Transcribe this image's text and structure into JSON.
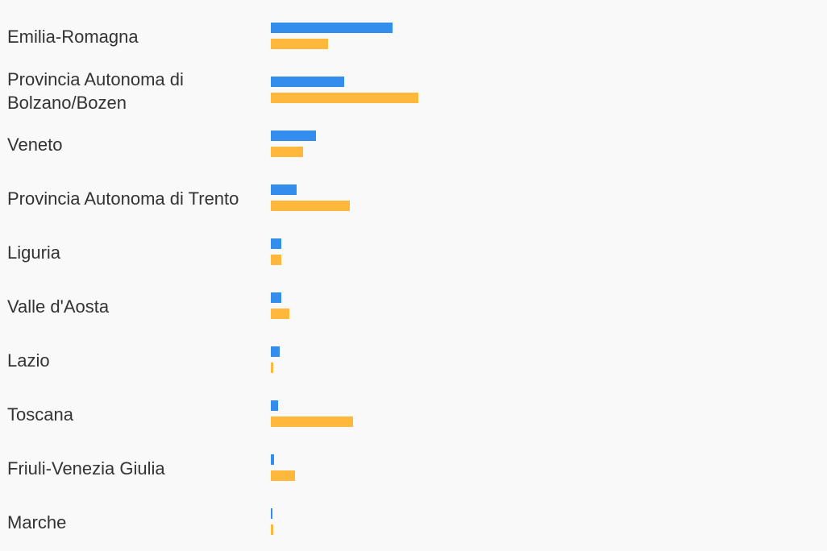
{
  "chart_data": {
    "type": "bar",
    "orientation": "horizontal",
    "categories": [
      "Emilia-Romagna",
      "Provincia Autonoma di Bolzano/Bozen",
      "Veneto",
      "Provincia Autonoma di Trento",
      "Liguria",
      "Valle d'Aosta",
      "Lazio",
      "Toscana",
      "Friuli-Venezia Giulia",
      "Marche"
    ],
    "series": [
      {
        "color": "#338ded",
        "values": [
          151,
          91,
          56,
          32,
          13,
          13,
          11,
          9,
          4,
          1.5
        ]
      },
      {
        "color": "#ffb83b",
        "values": [
          71,
          183,
          40,
          98,
          13,
          23,
          2.5,
          102,
          30,
          2.5
        ]
      }
    ],
    "title": "",
    "xlabel": "",
    "ylabel": "",
    "grid": false,
    "legend": "none"
  }
}
